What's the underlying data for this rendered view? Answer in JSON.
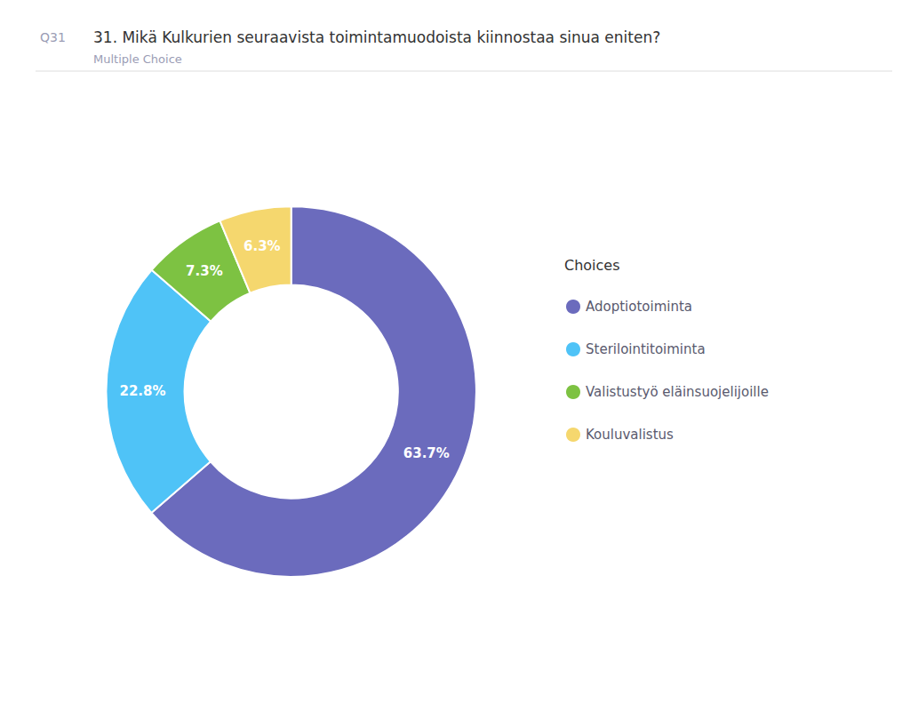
{
  "chart_data": {
    "type": "pie",
    "title": "31. Mikä Kulkurien seuraavista toimintamuodoista kiinnostaa sinua eniten?",
    "subtitle": "Multiple Choice",
    "annotations": [
      "Q31"
    ],
    "legend_title": "Choices",
    "categories": [
      "Adoptiotoiminta",
      "Sterilointitoiminta",
      "Valistustyö eläinsuojelijoille",
      "Kouluvalistus"
    ],
    "values": [
      63.7,
      22.8,
      7.3,
      6.3
    ],
    "value_labels": [
      "63.7%",
      "22.8%",
      "7.3%",
      "6.3%"
    ],
    "colors": [
      "#6b6bbd",
      "#4fc3f7",
      "#7dc242",
      "#f5d76e"
    ],
    "data_labels": true,
    "legend": "right"
  }
}
